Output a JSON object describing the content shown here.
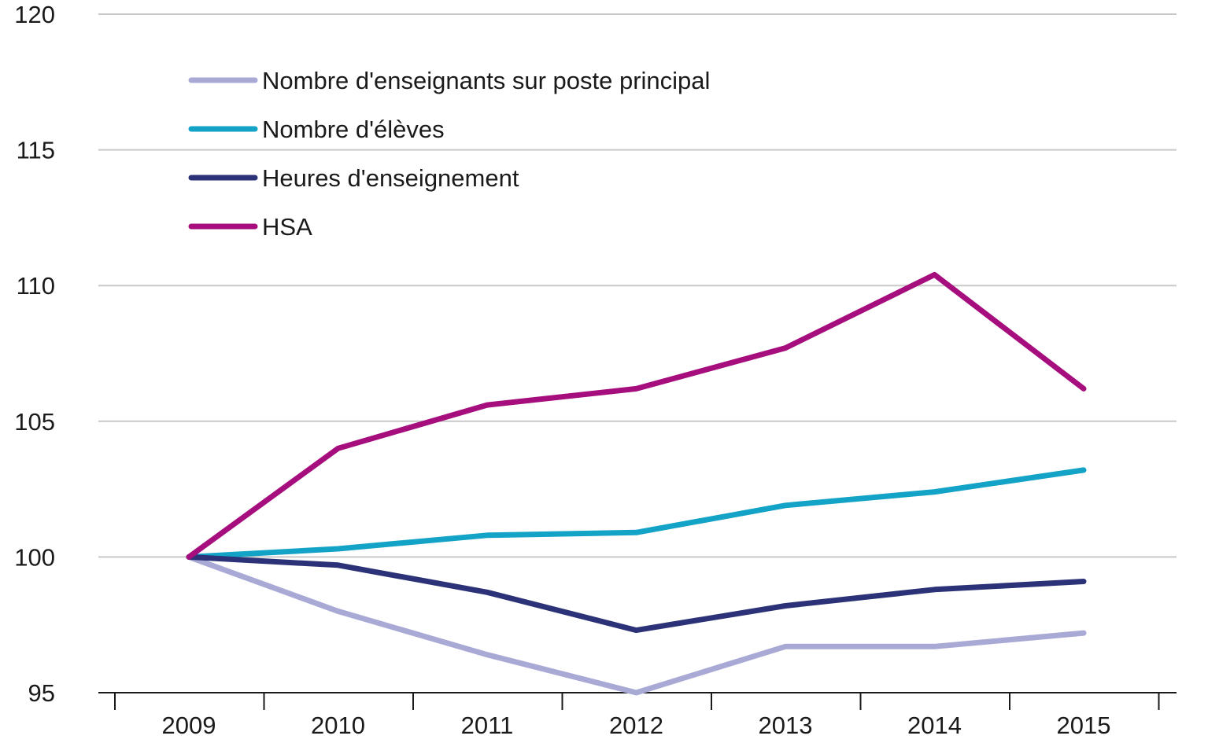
{
  "chart_data": {
    "type": "line",
    "title": "",
    "xlabel": "",
    "ylabel": "",
    "categories": [
      "2009",
      "2010",
      "2011",
      "2012",
      "2013",
      "2014",
      "2015"
    ],
    "ylim": [
      95,
      120
    ],
    "yticks": [
      "95",
      "100",
      "105",
      "110",
      "115",
      "120"
    ],
    "grid": true,
    "legend_position": "top-left",
    "series": [
      {
        "name": "Nombre d'enseignants sur poste principal",
        "color": "#a9a9d6",
        "values": [
          100,
          98.0,
          96.4,
          95.0,
          96.7,
          96.7,
          97.2
        ]
      },
      {
        "name": "Nombre d'élèves",
        "color": "#13a3c6",
        "values": [
          100,
          100.3,
          100.8,
          100.9,
          101.9,
          102.4,
          103.2
        ]
      },
      {
        "name": "Heures d'enseignement",
        "color": "#2c3277",
        "values": [
          100,
          99.7,
          98.7,
          97.3,
          98.2,
          98.8,
          99.1
        ]
      },
      {
        "name": "HSA",
        "color": "#a60e7e",
        "values": [
          100,
          104.0,
          105.6,
          106.2,
          107.7,
          110.4,
          106.2
        ]
      }
    ]
  }
}
